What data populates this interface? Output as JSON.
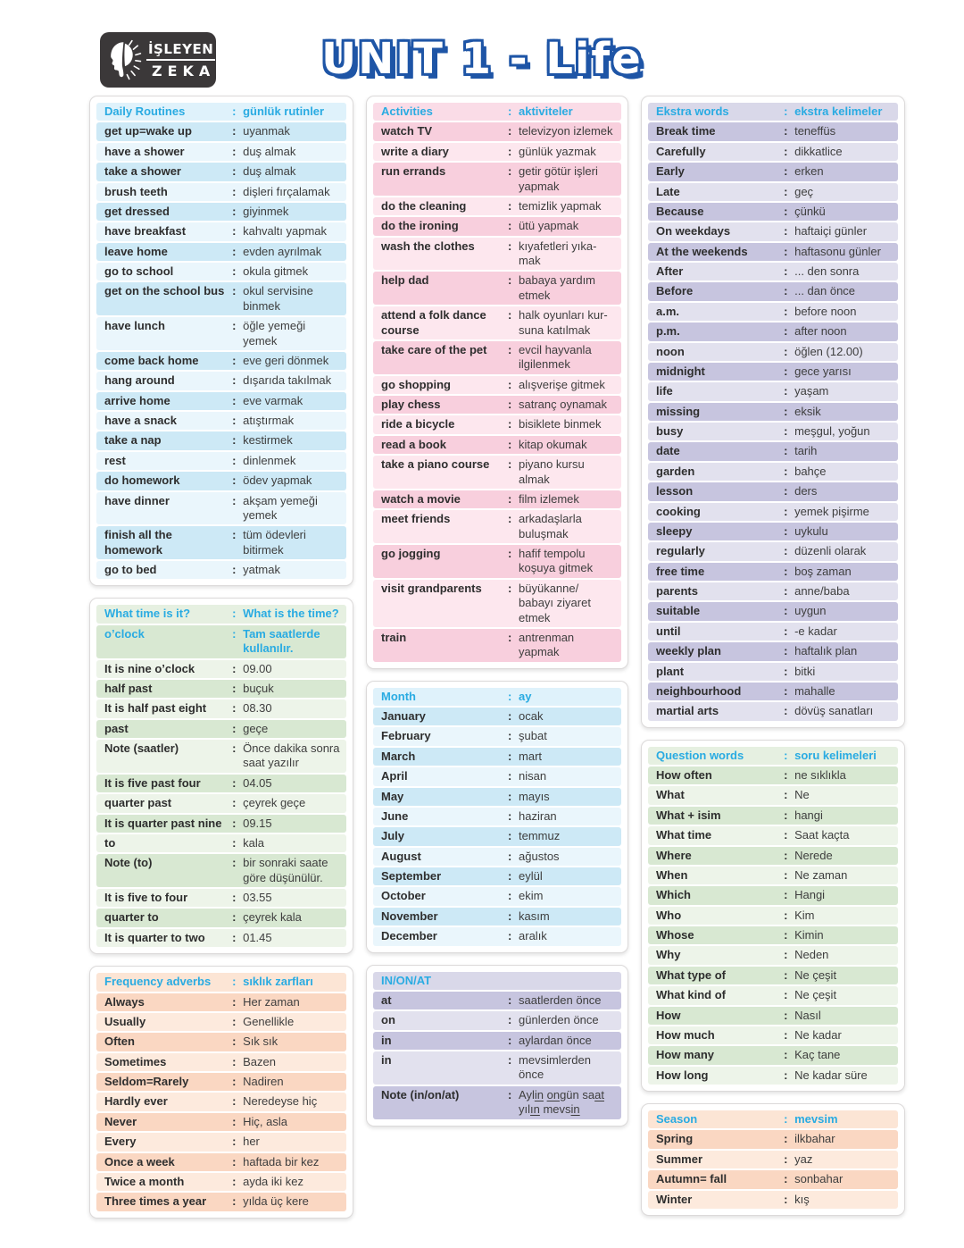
{
  "title": "UNIT 1 - Life",
  "logo": {
    "line1": "İŞLEYEN",
    "line2": "ZEKA"
  },
  "colors": {
    "header_text": "#29abe2",
    "title_fill": "#ffffff",
    "title_outline": "#1e55a6",
    "logo_bg": "#3b3839",
    "themes": {
      "blue": {
        "header": "#dff2fb",
        "dark": "#cde9f6",
        "light": "#eaf6fc"
      },
      "green": {
        "header": "#e6f0e1",
        "dark": "#d8e8d2",
        "light": "#edf4e9"
      },
      "peach": {
        "header": "#fce5d5",
        "dark": "#fad7c2",
        "light": "#fdeadd"
      },
      "pink": {
        "header": "#fadce7",
        "dark": "#f8cfdd",
        "light": "#fde7ee"
      },
      "purple": {
        "header": "#d9d8e9",
        "dark": "#c7c5df",
        "light": "#e2e1ee"
      }
    }
  },
  "layout": {
    "columns": [
      [
        "daily_routines",
        "what_time",
        "frequency_adverbs"
      ],
      [
        "activities",
        "month",
        "in_on_at"
      ],
      [
        "ekstra_words",
        "question_words",
        "season"
      ]
    ]
  },
  "sections": {
    "daily_routines": {
      "theme": "blue",
      "header": {
        "en": "Daily Routines",
        "tr": "günlük rutinler"
      },
      "rows": [
        {
          "en": "get up=wake up",
          "tr": "uyanmak"
        },
        {
          "en": "have a shower",
          "tr": "duş almak"
        },
        {
          "en": "take a shower",
          "tr": "duş almak"
        },
        {
          "en": "brush teeth",
          "tr": "dişleri fırçalamak"
        },
        {
          "en": "get dressed",
          "tr": "giyinmek"
        },
        {
          "en": "have breakfast",
          "tr": "kahvaltı yapmak"
        },
        {
          "en": "leave home",
          "tr": "evden ayrılmak"
        },
        {
          "en": "go to school",
          "tr": "okula gitmek"
        },
        {
          "en": "get on the school bus",
          "tr": "okul servisine binmek"
        },
        {
          "en": "have lunch",
          "tr": "öğle yemeği yemek"
        },
        {
          "en": "come back home",
          "tr": "eve geri dönmek"
        },
        {
          "en": "hang around",
          "tr": "dışarıda takılmak"
        },
        {
          "en": "arrive home",
          "tr": "eve varmak"
        },
        {
          "en": "have a snack",
          "tr": "atıştırmak"
        },
        {
          "en": "take a nap",
          "tr": "kestirmek"
        },
        {
          "en": "rest",
          "tr": "dinlenmek"
        },
        {
          "en": "do homework",
          "tr": "ödev yapmak"
        },
        {
          "en": "have dinner",
          "tr": "akşam yemeği yemek"
        },
        {
          "en": "finish all the homework",
          "tr": "tüm ödevleri bitirmek"
        },
        {
          "en": "go to bed",
          "tr": "yatmak"
        }
      ]
    },
    "what_time": {
      "theme": "green",
      "header": {
        "en": "What time is it?",
        "tr": "What is the time?"
      },
      "rows": [
        {
          "en": "o’clock",
          "tr": "Tam saatlerde kullanılır.",
          "accent": true
        },
        {
          "en": "It is nine o’clock",
          "tr": "09.00"
        },
        {
          "en": "half past",
          "tr": "buçuk"
        },
        {
          "en": "It is half past eight",
          "tr": "08.30"
        },
        {
          "en": "past",
          "tr": "geçe"
        },
        {
          "en": "Note (saatler)",
          "tr": "Önce dakika sonra saat yazılır"
        },
        {
          "en": "It is five past four",
          "tr": "04.05"
        },
        {
          "en": "quarter past",
          "tr": "çeyrek geçe"
        },
        {
          "en": "It is quarter past nine",
          "tr": "09.15"
        },
        {
          "en": "to",
          "tr": "kala"
        },
        {
          "en": "Note (to)",
          "tr": "bir sonraki saate göre düşünülür."
        },
        {
          "en": "It is five to four",
          "tr": "03.55"
        },
        {
          "en": "quarter to",
          "tr": "çeyrek kala"
        },
        {
          "en": "It is quarter to two",
          "tr": "01.45"
        }
      ]
    },
    "frequency_adverbs": {
      "theme": "peach",
      "header": {
        "en": "Frequency adverbs",
        "tr": "sıklık zarfları"
      },
      "rows": [
        {
          "en": "Always",
          "tr": "Her zaman"
        },
        {
          "en": "Usually",
          "tr": "Genellikle"
        },
        {
          "en": "Often",
          "tr": "Sık sık"
        },
        {
          "en": "Sometimes",
          "tr": "Bazen"
        },
        {
          "en": "Seldom=Rarely",
          "tr": "Nadiren"
        },
        {
          "en": "Hardly ever",
          "tr": "Neredeyse hiç"
        },
        {
          "en": "Never",
          "tr": "Hiç, asla"
        },
        {
          "en": "Every",
          "tr": "her"
        },
        {
          "en": "Once a week",
          "tr": "haftada bir kez"
        },
        {
          "en": "Twice a month",
          "tr": "ayda iki kez"
        },
        {
          "en": "Three times a year",
          "tr": "yılda üç kere"
        }
      ]
    },
    "activities": {
      "theme": "pink",
      "header": {
        "en": "Activities",
        "tr": "aktiviteler"
      },
      "rows": [
        {
          "en": "watch TV",
          "tr": "televizyon izlemek"
        },
        {
          "en": "write a diary",
          "tr": "günlük yazmak"
        },
        {
          "en": "run errands",
          "tr": "getir götür işleri yapmak"
        },
        {
          "en": "do the cleaning",
          "tr": "temizlik yapmak"
        },
        {
          "en": "do the ironing",
          "tr": "ütü yapmak"
        },
        {
          "en": "wash the clothes",
          "tr": "kıyafetleri yıka-mak"
        },
        {
          "en": "help dad",
          "tr": "babaya yardım etmek"
        },
        {
          "en": "attend a folk dance course",
          "tr": "halk oyunları kur-suna katılmak"
        },
        {
          "en": "take care of the pet",
          "tr": "evcil hayvanla ilgilenmek"
        },
        {
          "en": "go shopping",
          "tr": "alışverişe gitmek"
        },
        {
          "en": "play chess",
          "tr": "satranç oynamak"
        },
        {
          "en": "ride a bicycle",
          "tr": "bisiklete binmek"
        },
        {
          "en": "read a  book",
          "tr": "kitap okumak"
        },
        {
          "en": "take a piano course",
          "tr": "piyano kursu almak"
        },
        {
          "en": "watch a movie",
          "tr": "film izlemek"
        },
        {
          "en": "meet friends",
          "tr": "arkadaşlarla buluşmak"
        },
        {
          "en": "go jogging",
          "tr": "hafif tempolu koşuya gitmek"
        },
        {
          "en": "visit grandparents",
          "tr": "büyükanne/ babayı ziyaret etmek"
        },
        {
          "en": "train",
          "tr": "antrenman yapmak"
        }
      ]
    },
    "month": {
      "theme": "blue",
      "header": {
        "en": "Month",
        "tr": "ay"
      },
      "rows": [
        {
          "en": "January",
          "tr": "ocak"
        },
        {
          "en": "February",
          "tr": "şubat"
        },
        {
          "en": "March",
          "tr": "mart"
        },
        {
          "en": "April",
          "tr": "nisan"
        },
        {
          "en": "May",
          "tr": "mayıs"
        },
        {
          "en": "June",
          "tr": "haziran"
        },
        {
          "en": "July",
          "tr": "temmuz"
        },
        {
          "en": "August",
          "tr": "ağustos"
        },
        {
          "en": "September",
          "tr": "eylül"
        },
        {
          "en": "October",
          "tr": "ekim"
        },
        {
          "en": "November",
          "tr": "kasım"
        },
        {
          "en": "December",
          "tr": "aralık"
        }
      ]
    },
    "in_on_at": {
      "theme": "purple",
      "header": {
        "en": "IN/ON/AT",
        "tr": ""
      },
      "rows": [
        {
          "en": "at",
          "tr": "saatlerden önce"
        },
        {
          "en": "on",
          "tr": "günlerden önce"
        },
        {
          "en": "in",
          "tr": "aylardan önce"
        },
        {
          "en": "in",
          "tr": "mevsimlerden önce"
        },
        {
          "en": "Note (in/on/at)",
          "tr": "Ayl[in] [on]gün sa[at] yıl[ın] mevs[in]"
        }
      ]
    },
    "ekstra_words": {
      "theme": "purple",
      "header": {
        "en": "Ekstra words",
        "tr": "ekstra kelimeler"
      },
      "rows": [
        {
          "en": "Break time",
          "tr": "teneffüs"
        },
        {
          "en": "Carefully",
          "tr": "dikkatlice"
        },
        {
          "en": "Early",
          "tr": "erken"
        },
        {
          "en": "Late",
          "tr": "geç"
        },
        {
          "en": "Because",
          "tr": "çünkü"
        },
        {
          "en": "On weekdays",
          "tr": "haftaiçi günler"
        },
        {
          "en": "At the weekends",
          "tr": "haftasonu günler"
        },
        {
          "en": "After",
          "tr": "... den sonra"
        },
        {
          "en": "Before",
          "tr": "... dan önce"
        },
        {
          "en": "a.m.",
          "tr": "before noon"
        },
        {
          "en": "p.m.",
          "tr": "after noon"
        },
        {
          "en": "noon",
          "tr": "öğlen (12.00)"
        },
        {
          "en": "midnight",
          "tr": "gece yarısı"
        },
        {
          "en": "life",
          "tr": "yaşam"
        },
        {
          "en": "missing",
          "tr": "eksik"
        },
        {
          "en": "busy",
          "tr": "meşgul, yoğun"
        },
        {
          "en": "date",
          "tr": "tarih"
        },
        {
          "en": "garden",
          "tr": "bahçe"
        },
        {
          "en": "lesson",
          "tr": "ders"
        },
        {
          "en": "cooking",
          "tr": "yemek pişirme"
        },
        {
          "en": "sleepy",
          "tr": "uykulu"
        },
        {
          "en": "regularly",
          "tr": "düzenli olarak"
        },
        {
          "en": "free time",
          "tr": "boş zaman"
        },
        {
          "en": "parents",
          "tr": "anne/baba"
        },
        {
          "en": "suitable",
          "tr": "uygun"
        },
        {
          "en": "until",
          "tr": "-e kadar"
        },
        {
          "en": "weekly plan",
          "tr": "haftalık plan"
        },
        {
          "en": "plant",
          "tr": "bitki"
        },
        {
          "en": "neighbourhood",
          "tr": "mahalle"
        },
        {
          "en": "martial arts",
          "tr": "dövüş sanatları"
        }
      ]
    },
    "question_words": {
      "theme": "green",
      "header": {
        "en": "Question words",
        "tr": "soru kelimeleri"
      },
      "rows": [
        {
          "en": "How often",
          "tr": "ne sıklıkla"
        },
        {
          "en": "What",
          "tr": "Ne"
        },
        {
          "en": "What + isim",
          "tr": "hangi"
        },
        {
          "en": "What time",
          "tr": "Saat kaçta"
        },
        {
          "en": "Where",
          "tr": "Nerede"
        },
        {
          "en": "When",
          "tr": "Ne zaman"
        },
        {
          "en": "Which",
          "tr": "Hangi"
        },
        {
          "en": "Who",
          "tr": "Kim"
        },
        {
          "en": "Whose",
          "tr": "Kimin"
        },
        {
          "en": "Why",
          "tr": "Neden"
        },
        {
          "en": "What type of",
          "tr": "Ne çeşit"
        },
        {
          "en": "What kind of",
          "tr": "Ne çeşit"
        },
        {
          "en": "How",
          "tr": "Nasıl"
        },
        {
          "en": "How much",
          "tr": "Ne kadar"
        },
        {
          "en": "How many",
          "tr": "Kaç tane"
        },
        {
          "en": "How long",
          "tr": "Ne kadar süre"
        }
      ]
    },
    "season": {
      "theme": "peach",
      "header": {
        "en": "Season",
        "tr": "mevsim"
      },
      "rows": [
        {
          "en": "Spring",
          "tr": "ilkbahar"
        },
        {
          "en": "Summer",
          "tr": "yaz"
        },
        {
          "en": "Autumn= fall",
          "tr": "sonbahar"
        },
        {
          "en": "Winter",
          "tr": "kış"
        }
      ]
    }
  }
}
